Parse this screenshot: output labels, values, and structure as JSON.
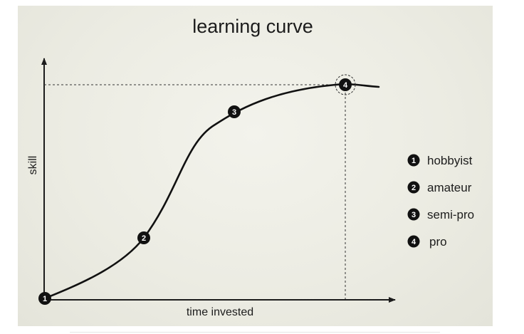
{
  "title": "learning curve",
  "axes": {
    "x_label": "time invested",
    "y_label": "skill"
  },
  "legend": [
    {
      "number": "1",
      "label": "hobbyist"
    },
    {
      "number": "2",
      "label": "amateur"
    },
    {
      "number": "3",
      "label": "semi-pro"
    },
    {
      "number": "4",
      "label": "pro"
    }
  ],
  "colors": {
    "background": "#ecece3",
    "ink": "#1c1c1c"
  }
}
